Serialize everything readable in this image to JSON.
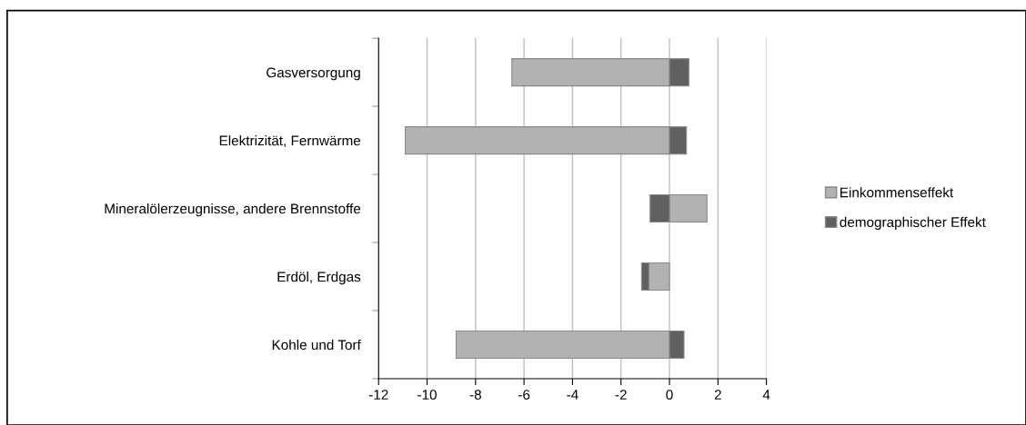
{
  "chart_data": {
    "type": "bar",
    "orientation": "horizontal",
    "stacked": true,
    "categories": [
      "Gasversorgung",
      "Elektrizität, Fernwärme",
      "Mineralölerzeugnisse, andere Brennstoffe",
      "Erdöl, Erdgas",
      "Kohle und Torf"
    ],
    "series": [
      {
        "name": "Einkommenseffekt",
        "color": "#b2b2b2",
        "values": [
          -6.5,
          -10.9,
          1.55,
          -0.85,
          -8.8
        ]
      },
      {
        "name": "demographischer Effekt",
        "color": "#606060",
        "values": [
          0.8,
          0.7,
          -0.8,
          -0.3,
          0.6
        ]
      }
    ],
    "xlim": [
      -12,
      4
    ],
    "xticks": [
      -12,
      -10,
      -8,
      -6,
      -4,
      -2,
      0,
      2,
      4
    ],
    "grid": "x",
    "legend": "right"
  }
}
